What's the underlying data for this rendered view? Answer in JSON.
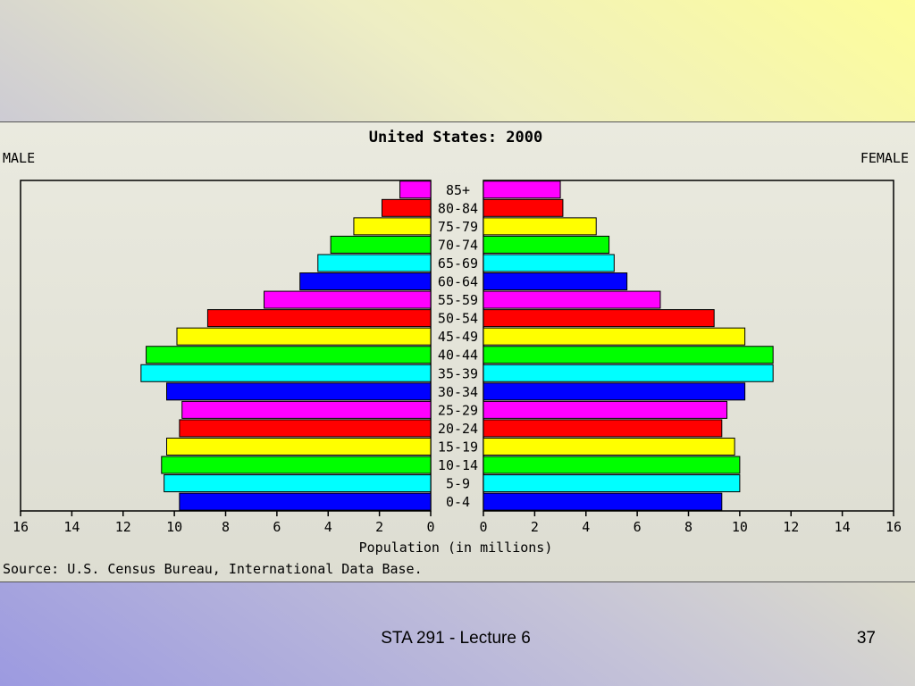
{
  "chart_data": {
    "type": "bar",
    "title": "United States: 2000",
    "left_label": "MALE",
    "right_label": "FEMALE",
    "xlabel": "Population (in millions)",
    "source": "Source: U.S. Census Bureau, International Data Base.",
    "xlim": [
      0,
      16
    ],
    "x_ticks": [
      "16",
      "14",
      "12",
      "10",
      "8",
      "6",
      "4",
      "2",
      "0",
      "0",
      "2",
      "4",
      "6",
      "8",
      "10",
      "12",
      "14",
      "16"
    ],
    "grid": false,
    "categories": [
      "85+",
      "80-84",
      "75-79",
      "70-74",
      "65-69",
      "60-64",
      "55-59",
      "50-54",
      "45-49",
      "40-44",
      "35-39",
      "30-34",
      "25-29",
      "20-24",
      "15-19",
      "10-14",
      "5-9",
      "0-4"
    ],
    "bar_colors": [
      "#ff00ff",
      "#ff0000",
      "#ffff00",
      "#00ff00",
      "#00ffff",
      "#0000ff",
      "#ff00ff",
      "#ff0000",
      "#ffff00",
      "#00ff00",
      "#00ffff",
      "#0000ff",
      "#ff00ff",
      "#ff0000",
      "#ffff00",
      "#00ff00",
      "#00ffff",
      "#0000ff"
    ],
    "series": [
      {
        "name": "MALE",
        "values": [
          1.2,
          1.9,
          3.0,
          3.9,
          4.4,
          5.1,
          6.5,
          8.7,
          9.9,
          11.1,
          11.3,
          10.3,
          9.7,
          9.8,
          10.3,
          10.5,
          10.4,
          9.8
        ]
      },
      {
        "name": "FEMALE",
        "values": [
          3.0,
          3.1,
          4.4,
          4.9,
          5.1,
          5.6,
          6.9,
          9.0,
          10.2,
          11.3,
          11.3,
          10.2,
          9.5,
          9.3,
          9.8,
          10.0,
          10.0,
          9.3
        ]
      }
    ]
  },
  "footer": {
    "title": "STA 291 - Lecture 6",
    "page": "37"
  }
}
